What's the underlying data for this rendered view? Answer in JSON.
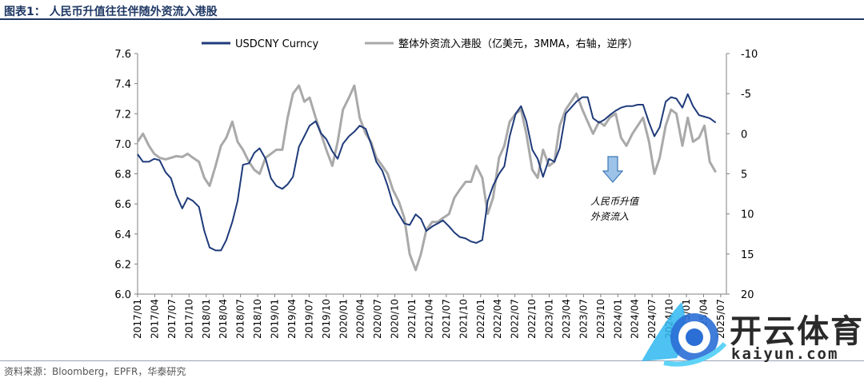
{
  "page": {
    "title": "图表1： 人民币升值往往伴随外资流入港股",
    "source": "资料来源：Bloomberg，EPFR，华泰研究",
    "watermark_cn": "开云体育",
    "watermark_en": "kaiyun.com"
  },
  "colors": {
    "usdcny": "#1f3b7a",
    "flows": "#a9a9a9",
    "arrow": "#9ec3e8",
    "arrow_stroke": "#3a78b5",
    "title": "#1f3864"
  },
  "chart_data": {
    "type": "line",
    "title": "人民币升值往往伴随外资流入港股",
    "legend": [
      "USDCNY Curncy",
      "整体外资流入港股（亿美元，3MMA，右轴，逆序）"
    ],
    "legend_position": "top",
    "annotation": [
      "人民币升值",
      "外资流入"
    ],
    "x_ticks": [
      "2017/01",
      "2017/04",
      "2017/07",
      "2017/10",
      "2018/01",
      "2018/04",
      "2018/07",
      "2018/10",
      "2019/01",
      "2019/04",
      "2019/07",
      "2019/10",
      "2020/01",
      "2020/04",
      "2020/07",
      "2020/10",
      "2021/01",
      "2021/04",
      "2021/07",
      "2021/10",
      "2022/01",
      "2022/04",
      "2022/07",
      "2022/10",
      "2023/01",
      "2023/04",
      "2023/07",
      "2023/10",
      "2024/01",
      "2024/04",
      "2024/07",
      "2024/10",
      "2025/01",
      "2025/04",
      "2025/07"
    ],
    "y_left": {
      "min": 6.0,
      "max": 7.6,
      "ticks": [
        "7.6",
        "7.4",
        "7.2",
        "7.0",
        "6.8",
        "6.6",
        "6.4",
        "6.2",
        "6.0"
      ]
    },
    "y_right": {
      "min": -10,
      "max": 20,
      "inverted": true,
      "ticks": [
        "-10",
        "-5",
        "0",
        "5",
        "10",
        "15",
        "20"
      ]
    },
    "series": [
      {
        "name": "USDCNY Curncy",
        "axis": "left",
        "x": [
          2017.0,
          2017.08,
          2017.17,
          2017.25,
          2017.33,
          2017.42,
          2017.5,
          2017.58,
          2017.67,
          2017.75,
          2017.83,
          2017.92,
          2018.0,
          2018.08,
          2018.17,
          2018.25,
          2018.33,
          2018.42,
          2018.5,
          2018.58,
          2018.67,
          2018.75,
          2018.83,
          2018.92,
          2019.0,
          2019.08,
          2019.17,
          2019.25,
          2019.33,
          2019.42,
          2019.5,
          2019.58,
          2019.67,
          2019.75,
          2019.83,
          2019.92,
          2020.0,
          2020.08,
          2020.17,
          2020.25,
          2020.33,
          2020.42,
          2020.5,
          2020.58,
          2020.67,
          2020.75,
          2020.83,
          2020.92,
          2021.0,
          2021.08,
          2021.17,
          2021.25,
          2021.33,
          2021.42,
          2021.5,
          2021.58,
          2021.67,
          2021.75,
          2021.83,
          2021.92,
          2022.0,
          2022.08,
          2022.17,
          2022.25,
          2022.33,
          2022.42,
          2022.5,
          2022.58,
          2022.67,
          2022.75,
          2022.83,
          2022.92,
          2023.0,
          2023.08,
          2023.17,
          2023.25,
          2023.33,
          2023.42,
          2023.5,
          2023.58,
          2023.67,
          2023.75,
          2023.83,
          2023.92,
          2024.0,
          2024.08,
          2024.17,
          2024.25,
          2024.33,
          2024.42,
          2024.5,
          2024.58,
          2024.67,
          2024.75,
          2024.83,
          2024.92,
          2025.0,
          2025.08,
          2025.17,
          2025.25,
          2025.33,
          2025.42,
          2025.5,
          2025.58,
          2025.67
        ],
        "values": [
          6.93,
          6.88,
          6.88,
          6.9,
          6.89,
          6.81,
          6.77,
          6.66,
          6.57,
          6.64,
          6.62,
          6.58,
          6.42,
          6.31,
          6.29,
          6.29,
          6.36,
          6.48,
          6.62,
          6.86,
          6.87,
          6.94,
          6.97,
          6.9,
          6.77,
          6.72,
          6.7,
          6.73,
          6.78,
          6.98,
          7.05,
          7.12,
          7.15,
          7.07,
          7.03,
          6.95,
          6.9,
          7.0,
          7.05,
          7.08,
          7.12,
          7.1,
          7.0,
          6.88,
          6.82,
          6.72,
          6.6,
          6.53,
          6.47,
          6.46,
          6.53,
          6.5,
          6.42,
          6.45,
          6.47,
          6.49,
          6.45,
          6.41,
          6.38,
          6.37,
          6.35,
          6.34,
          6.36,
          6.62,
          6.72,
          6.8,
          6.85,
          7.05,
          7.2,
          7.25,
          7.15,
          6.96,
          6.9,
          6.78,
          6.9,
          6.88,
          6.97,
          7.2,
          7.24,
          7.28,
          7.31,
          7.31,
          7.17,
          7.14,
          7.16,
          7.19,
          7.22,
          7.24,
          7.25,
          7.25,
          7.26,
          7.26,
          7.14,
          7.05,
          7.11,
          7.28,
          7.31,
          7.3,
          7.24,
          7.33,
          7.25,
          7.19,
          7.18,
          7.17,
          7.14
        ]
      },
      {
        "name": "整体外资流入港股（亿美元，3MMA，右轴，逆序）",
        "axis": "right",
        "x": [
          2017.0,
          2017.08,
          2017.17,
          2017.25,
          2017.33,
          2017.42,
          2017.5,
          2017.58,
          2017.67,
          2017.75,
          2017.83,
          2017.92,
          2018.0,
          2018.08,
          2018.17,
          2018.25,
          2018.33,
          2018.42,
          2018.5,
          2018.58,
          2018.67,
          2018.75,
          2018.83,
          2018.92,
          2019.0,
          2019.08,
          2019.17,
          2019.25,
          2019.33,
          2019.42,
          2019.5,
          2019.58,
          2019.67,
          2019.75,
          2019.83,
          2019.92,
          2020.0,
          2020.08,
          2020.17,
          2020.25,
          2020.33,
          2020.42,
          2020.5,
          2020.58,
          2020.67,
          2020.75,
          2020.83,
          2020.92,
          2021.0,
          2021.08,
          2021.17,
          2021.25,
          2021.33,
          2021.42,
          2021.5,
          2021.58,
          2021.67,
          2021.75,
          2021.83,
          2021.92,
          2022.0,
          2022.08,
          2022.17,
          2022.25,
          2022.33,
          2022.42,
          2022.5,
          2022.58,
          2022.67,
          2022.75,
          2022.83,
          2022.92,
          2023.0,
          2023.08,
          2023.17,
          2023.25,
          2023.33,
          2023.42,
          2023.5,
          2023.58,
          2023.67,
          2023.75,
          2023.83,
          2023.92,
          2024.0,
          2024.08,
          2024.17,
          2024.25,
          2024.33,
          2024.42,
          2024.5,
          2024.58,
          2024.67,
          2024.75,
          2024.83,
          2024.92,
          2025.0,
          2025.08,
          2025.17,
          2025.25,
          2025.33,
          2025.42,
          2025.5,
          2025.58,
          2025.67
        ],
        "values": [
          1.0,
          0.0,
          1.5,
          2.5,
          3.0,
          3.2,
          3.0,
          2.8,
          2.9,
          2.5,
          3.0,
          3.5,
          5.5,
          6.5,
          4.0,
          1.5,
          0.5,
          -1.5,
          1.0,
          2.0,
          3.5,
          4.5,
          5.0,
          3.0,
          2.5,
          2.0,
          2.0,
          -2.0,
          -5.0,
          -6.0,
          -4.0,
          -4.5,
          -2.0,
          0.0,
          2.0,
          4.0,
          1.0,
          -3.0,
          -4.5,
          -6.0,
          -2.0,
          0.0,
          1.0,
          3.0,
          4.0,
          5.0,
          7.0,
          8.5,
          10.5,
          15.0,
          17.0,
          15.0,
          12.0,
          11.0,
          11.0,
          10.5,
          10.0,
          8.0,
          7.0,
          6.0,
          6.0,
          4.0,
          5.5,
          10.0,
          8.0,
          3.0,
          1.5,
          -1.5,
          -2.5,
          -3.0,
          0.0,
          4.5,
          5.5,
          2.0,
          4.0,
          3.5,
          -1.0,
          -3.0,
          -4.0,
          -5.0,
          -3.0,
          -1.5,
          0.0,
          -1.5,
          -1.0,
          -2.0,
          -2.5,
          0.5,
          1.5,
          0.0,
          -1.0,
          -2.0,
          1.0,
          5.0,
          3.0,
          -1.0,
          -3.0,
          -2.5,
          1.5,
          -2.0,
          1.0,
          0.5,
          -1.0,
          3.5,
          4.8
        ]
      }
    ]
  }
}
